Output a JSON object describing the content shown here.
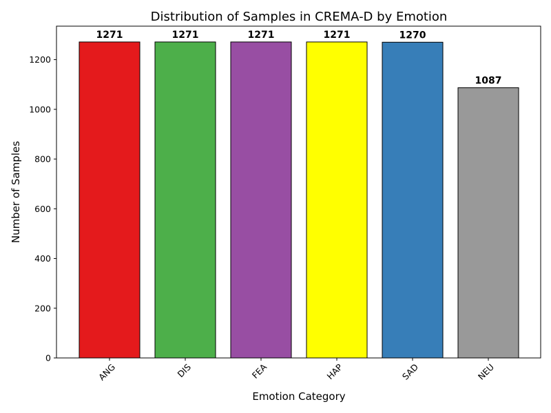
{
  "chart_data": {
    "type": "bar",
    "title": "Distribution of Samples in CREMA-D by Emotion",
    "xlabel": "Emotion Category",
    "ylabel": "Number of Samples",
    "categories": [
      "ANG",
      "DIS",
      "FEA",
      "HAP",
      "SAD",
      "NEU"
    ],
    "values": [
      1271,
      1271,
      1271,
      1271,
      1270,
      1087
    ],
    "colors": [
      "#e41a1c",
      "#4daf4a",
      "#984ea3",
      "#ffff00",
      "#377eb8",
      "#999999"
    ],
    "ylim": [
      0,
      1334.55
    ],
    "yticks": [
      0,
      200,
      400,
      600,
      800,
      1000,
      1200
    ],
    "grid": false,
    "legend": "none"
  }
}
